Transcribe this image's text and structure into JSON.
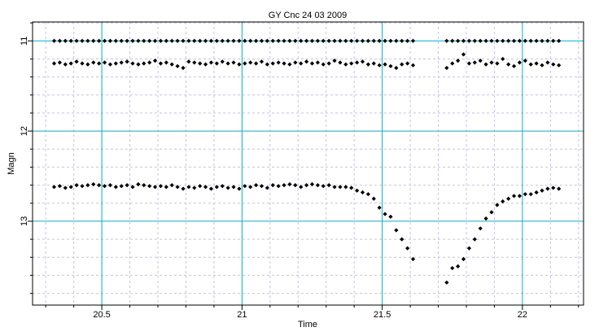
{
  "chart_data": {
    "type": "scatter",
    "title": "GY Cnc 24 03 2009",
    "x_label": "Time",
    "y_label": "Magn",
    "xlim": [
      20.253,
      22.218
    ],
    "ylim": [
      13.93,
      10.79
    ],
    "xticks": [
      20.5,
      21,
      21.5,
      22
    ],
    "yticks": [
      11,
      12,
      13
    ],
    "xminor": [
      20.3,
      20.4,
      20.6,
      20.7,
      20.8,
      20.9,
      21.1,
      21.2,
      21.3,
      21.4,
      21.6,
      21.7,
      21.8,
      21.9,
      22.1,
      22.2
    ],
    "yminor": [
      10.8,
      11.2,
      11.4,
      11.6,
      11.8,
      12.2,
      12.4,
      12.6,
      12.8,
      13.2,
      13.4,
      13.6,
      13.8
    ],
    "grid": true,
    "grid_color": "#00b0d0",
    "minor_grid_color": "#c4c4e4",
    "x": [
      20.33,
      20.35,
      20.37,
      20.39,
      20.41,
      20.43,
      20.45,
      20.47,
      20.49,
      20.51,
      20.53,
      20.55,
      20.57,
      20.59,
      20.61,
      20.63,
      20.65,
      20.67,
      20.69,
      20.71,
      20.73,
      20.75,
      20.77,
      20.79,
      20.81,
      20.83,
      20.85,
      20.87,
      20.89,
      20.91,
      20.93,
      20.95,
      20.97,
      20.99,
      21.01,
      21.03,
      21.05,
      21.07,
      21.09,
      21.11,
      21.13,
      21.15,
      21.17,
      21.19,
      21.21,
      21.23,
      21.25,
      21.27,
      21.29,
      21.31,
      21.33,
      21.35,
      21.37,
      21.39,
      21.41,
      21.43,
      21.45,
      21.47,
      21.49,
      21.51,
      21.53,
      21.55,
      21.57,
      21.59,
      21.61,
      21.63,
      21.65,
      21.67,
      21.69,
      21.71,
      21.73,
      21.75,
      21.77,
      21.79,
      21.81,
      21.83,
      21.85,
      21.87,
      21.89,
      21.91,
      21.93,
      21.95,
      21.97,
      21.99,
      22.01,
      22.03,
      22.05,
      22.07,
      22.09,
      22.11,
      22.13
    ],
    "series": [
      {
        "color": "#000000",
        "values": [
          11,
          11,
          11,
          11,
          11,
          11,
          11,
          11,
          11,
          11,
          11,
          11,
          11,
          11,
          11,
          11,
          11,
          11,
          11,
          11,
          11,
          11,
          11,
          11,
          11,
          11,
          11,
          11,
          11,
          11,
          11,
          11,
          11,
          11,
          11,
          11,
          11,
          11,
          11,
          11,
          11,
          11,
          11,
          11,
          11,
          11,
          11,
          11,
          11,
          11,
          11,
          11,
          11,
          11,
          11,
          11,
          11,
          11,
          11,
          11,
          11,
          11,
          11,
          11,
          11,
          null,
          null,
          null,
          null,
          null,
          11,
          11,
          11,
          11,
          11,
          11,
          11,
          11,
          11,
          11,
          11,
          11,
          11,
          11,
          11,
          11,
          11,
          11,
          11,
          11,
          11
        ]
      },
      {
        "color": "#000000",
        "values": [
          11.25,
          11.24,
          11.26,
          11.25,
          11.23,
          11.25,
          11.26,
          11.24,
          11.25,
          11.24,
          11.26,
          11.25,
          11.24,
          11.23,
          11.25,
          11.26,
          11.25,
          11.24,
          11.22,
          11.25,
          11.24,
          11.26,
          11.28,
          11.3,
          11.23,
          11.24,
          11.25,
          11.26,
          11.24,
          11.25,
          11.23,
          11.25,
          11.24,
          11.26,
          11.25,
          11.24,
          11.25,
          11.23,
          11.26,
          11.25,
          11.24,
          11.25,
          11.26,
          11.24,
          11.25,
          11.23,
          11.25,
          11.24,
          11.26,
          11.25,
          11.22,
          11.24,
          11.26,
          11.25,
          11.24,
          11.23,
          11.26,
          11.25,
          11.27,
          11.26,
          11.28,
          11.3,
          11.26,
          11.25,
          11.27,
          null,
          null,
          null,
          null,
          null,
          11.3,
          11.25,
          11.22,
          11.15,
          11.25,
          11.24,
          11.22,
          11.26,
          11.24,
          11.25,
          11.2,
          11.26,
          11.28,
          11.24,
          11.22,
          11.26,
          11.25,
          11.27,
          11.24,
          11.26,
          11.27
        ]
      },
      {
        "color": "#000000",
        "values": [
          12.62,
          12.61,
          12.63,
          12.62,
          12.6,
          12.61,
          12.6,
          12.59,
          12.6,
          12.61,
          12.6,
          12.62,
          12.61,
          12.6,
          12.62,
          12.59,
          12.6,
          12.61,
          12.62,
          12.61,
          12.62,
          12.6,
          12.62,
          12.64,
          12.62,
          12.63,
          12.61,
          12.62,
          12.64,
          12.62,
          12.61,
          12.63,
          12.62,
          12.64,
          12.61,
          12.62,
          12.6,
          12.61,
          12.63,
          12.6,
          12.61,
          12.6,
          12.59,
          12.6,
          12.62,
          12.6,
          12.59,
          12.6,
          12.61,
          12.6,
          12.62,
          12.62,
          12.62,
          12.63,
          12.66,
          12.68,
          12.7,
          12.75,
          12.85,
          12.92,
          12.95,
          13.1,
          13.2,
          13.3,
          13.42,
          null,
          null,
          null,
          null,
          null,
          13.68,
          13.52,
          13.5,
          13.42,
          13.3,
          13.2,
          13.08,
          12.97,
          12.9,
          12.82,
          12.78,
          12.75,
          12.72,
          12.72,
          12.7,
          12.7,
          12.68,
          12.66,
          12.64,
          12.63,
          12.64
        ]
      }
    ]
  }
}
